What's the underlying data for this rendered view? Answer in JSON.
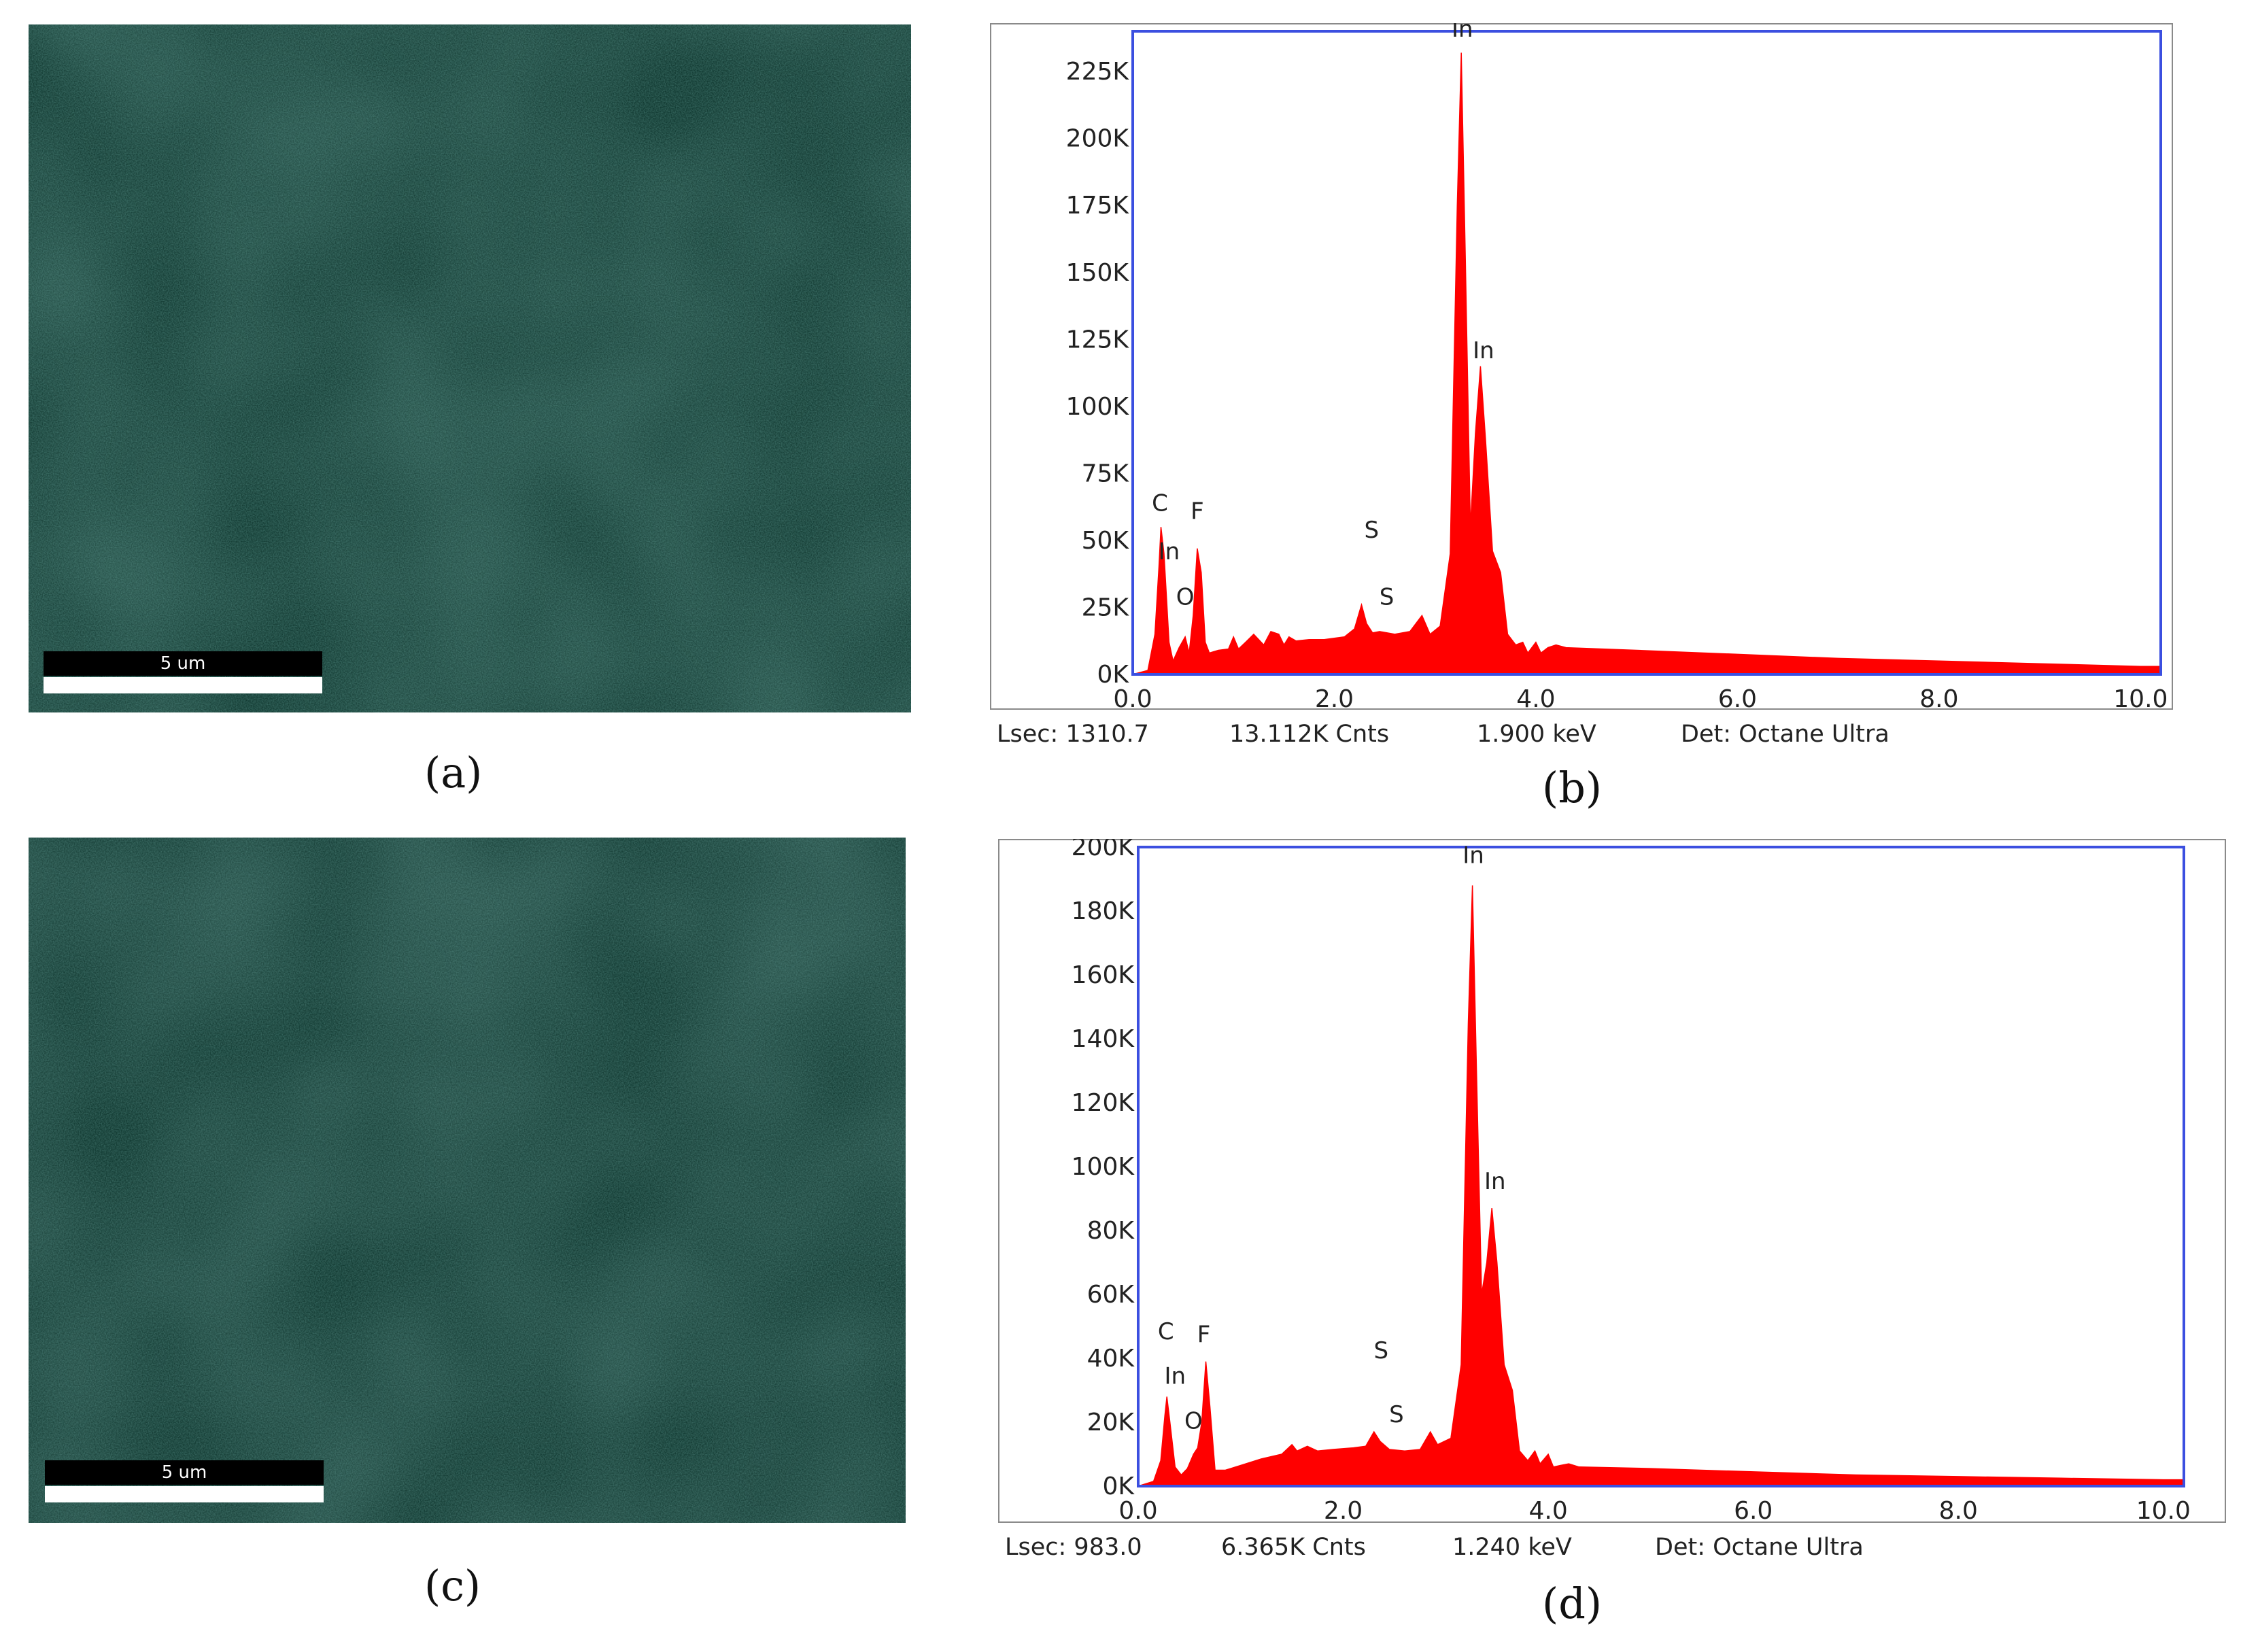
{
  "panels": {
    "a": {
      "caption": "(a)",
      "scale_label": "5 um"
    },
    "b": {
      "caption": "(b)"
    },
    "c": {
      "caption": "(c)",
      "scale_label": "5 um"
    },
    "d": {
      "caption": "(d)"
    }
  },
  "status_bars": {
    "b": {
      "lsec": "Lsec: 1310.7",
      "counts": "13.112K Cnts",
      "energy": "1.900 keV",
      "detector": "Det: Octane Ultra"
    },
    "d": {
      "lsec": "Lsec: 983.0",
      "counts": "6.365K Cnts",
      "energy": "1.240 keV",
      "detector": "Det: Octane Ultra"
    }
  },
  "colors": {
    "spectrum_fill": "#ff0000",
    "plot_frame": "#3b4fe0",
    "sem_base": "#123a32",
    "sem_speckle": "#2d6e63"
  },
  "chart_data": [
    {
      "type": "area",
      "panel": "b",
      "xlim": [
        0,
        10.2
      ],
      "ylim": [
        0,
        240000
      ],
      "xticks": [
        0,
        2,
        4,
        6,
        8,
        10
      ],
      "xtick_labels": [
        "0.0",
        "2.0",
        "4.0",
        "6.0",
        "8.0",
        "10.0"
      ],
      "yticks": [
        0,
        25000,
        50000,
        75000,
        100000,
        125000,
        150000,
        175000,
        200000,
        225000
      ],
      "ytick_labels": [
        "0K",
        "25K",
        "50K",
        "75K",
        "100K",
        "125K",
        "150K",
        "175K",
        "200K",
        "225K"
      ],
      "x": [
        0.0,
        0.15,
        0.22,
        0.26,
        0.28,
        0.31,
        0.36,
        0.4,
        0.46,
        0.52,
        0.56,
        0.6,
        0.64,
        0.68,
        0.72,
        0.76,
        0.85,
        0.95,
        1.0,
        1.05,
        1.12,
        1.2,
        1.3,
        1.37,
        1.45,
        1.5,
        1.55,
        1.62,
        1.75,
        1.9,
        2.1,
        2.2,
        2.27,
        2.32,
        2.38,
        2.45,
        2.6,
        2.75,
        2.87,
        2.95,
        3.05,
        3.15,
        3.22,
        3.26,
        3.3,
        3.35,
        3.4,
        3.45,
        3.5,
        3.57,
        3.65,
        3.72,
        3.8,
        3.87,
        3.92,
        4.0,
        4.05,
        4.12,
        4.2,
        4.3,
        5.0,
        6.0,
        7.0,
        8.0,
        9.0,
        10.0,
        10.2
      ],
      "values": [
        0,
        1500,
        15000,
        40000,
        55000,
        45000,
        12000,
        5000,
        10000,
        14000,
        8000,
        22000,
        47000,
        38000,
        12000,
        8000,
        9000,
        9500,
        14000,
        9500,
        12000,
        15000,
        11000,
        16000,
        15000,
        11000,
        14000,
        12500,
        13000,
        13000,
        14000,
        17000,
        26000,
        19000,
        15500,
        16000,
        15000,
        16000,
        22000,
        15000,
        18000,
        45000,
        175000,
        232000,
        155000,
        55000,
        90000,
        115000,
        88000,
        46000,
        38000,
        15000,
        11000,
        12000,
        8000,
        12000,
        8000,
        10000,
        11000,
        10000,
        9000,
        7500,
        6000,
        5000,
        4000,
        3000,
        3000
      ],
      "annotations": [
        {
          "text": "In",
          "x": 3.27,
          "y": 238000
        },
        {
          "text": "In",
          "x": 3.48,
          "y": 118000
        },
        {
          "text": "C",
          "x": 0.27,
          "y": 61000
        },
        {
          "text": "F",
          "x": 0.64,
          "y": 58000
        },
        {
          "text": "In",
          "x": 0.36,
          "y": 43000
        },
        {
          "text": "O",
          "x": 0.52,
          "y": 26000
        },
        {
          "text": "S",
          "x": 2.37,
          "y": 51000
        },
        {
          "text": "S",
          "x": 2.52,
          "y": 26000
        }
      ]
    },
    {
      "type": "area",
      "panel": "d",
      "xlim": [
        0,
        10.2
      ],
      "ylim": [
        0,
        200000
      ],
      "xticks": [
        0,
        2,
        4,
        6,
        8,
        10
      ],
      "xtick_labels": [
        "0.0",
        "2.0",
        "4.0",
        "6.0",
        "8.0",
        "10.0"
      ],
      "yticks": [
        0,
        20000,
        40000,
        60000,
        80000,
        100000,
        120000,
        140000,
        160000,
        180000,
        200000
      ],
      "ytick_labels": [
        "0K",
        "20K",
        "40K",
        "60K",
        "80K",
        "100K",
        "120K",
        "140K",
        "160K",
        "180K",
        "200K"
      ],
      "x": [
        0.0,
        0.15,
        0.22,
        0.26,
        0.28,
        0.31,
        0.36,
        0.42,
        0.48,
        0.54,
        0.58,
        0.62,
        0.66,
        0.7,
        0.75,
        0.85,
        1.0,
        1.2,
        1.4,
        1.5,
        1.55,
        1.65,
        1.75,
        1.9,
        2.1,
        2.22,
        2.3,
        2.36,
        2.45,
        2.6,
        2.75,
        2.85,
        2.92,
        3.05,
        3.15,
        3.22,
        3.26,
        3.3,
        3.35,
        3.4,
        3.45,
        3.5,
        3.57,
        3.65,
        3.72,
        3.8,
        3.87,
        3.92,
        4.0,
        4.05,
        4.12,
        4.2,
        4.3,
        5.0,
        6.0,
        7.0,
        8.0,
        9.0,
        10.0,
        10.2
      ],
      "values": [
        0,
        1500,
        8000,
        22000,
        28000,
        20000,
        6000,
        3500,
        5500,
        10000,
        12000,
        20000,
        39000,
        25000,
        5000,
        5000,
        6500,
        8500,
        10000,
        13000,
        11000,
        12500,
        11000,
        11500,
        12000,
        12500,
        17000,
        14000,
        11500,
        11000,
        11500,
        17000,
        13000,
        15000,
        38000,
        145000,
        188000,
        130000,
        60000,
        70000,
        87000,
        70000,
        38000,
        30000,
        11000,
        8000,
        11000,
        7000,
        10000,
        6000,
        6500,
        7000,
        6000,
        5500,
        4500,
        3500,
        3000,
        2500,
        2000,
        2000
      ],
      "annotations": [
        {
          "text": "In",
          "x": 3.27,
          "y": 195000
        },
        {
          "text": "In",
          "x": 3.48,
          "y": 93000
        },
        {
          "text": "C",
          "x": 0.27,
          "y": 46000
        },
        {
          "text": "F",
          "x": 0.64,
          "y": 45000
        },
        {
          "text": "In",
          "x": 0.36,
          "y": 32000
        },
        {
          "text": "O",
          "x": 0.54,
          "y": 18000
        },
        {
          "text": "S",
          "x": 2.37,
          "y": 40000
        },
        {
          "text": "S",
          "x": 2.52,
          "y": 20000
        }
      ]
    }
  ]
}
